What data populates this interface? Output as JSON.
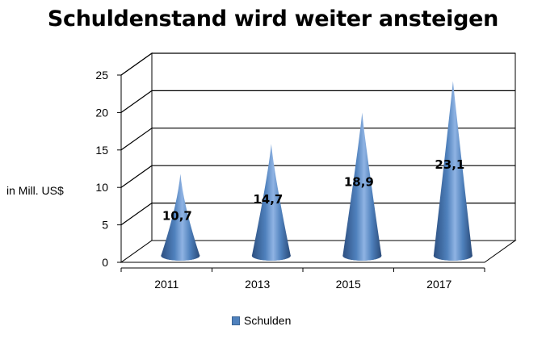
{
  "chart_data": {
    "type": "bar",
    "title": "Schuldenstand wird weiter ansteigen",
    "ylabel": "in Mill. US$",
    "xlabel": "",
    "categories": [
      "2011",
      "2013",
      "2015",
      "2017"
    ],
    "series": [
      {
        "name": "Schulden",
        "values": [
          10.7,
          14.7,
          18.9,
          23.1
        ],
        "data_labels": [
          "10,7",
          "14,7",
          "18,9",
          "23,1"
        ]
      }
    ],
    "ylim": [
      0,
      25
    ],
    "yticks": [
      "0",
      "5",
      "10",
      "15",
      "20",
      "25"
    ],
    "grid": true,
    "legend": "bottom",
    "colors": {
      "series": "#4f81bd",
      "grid": "#000000"
    }
  }
}
